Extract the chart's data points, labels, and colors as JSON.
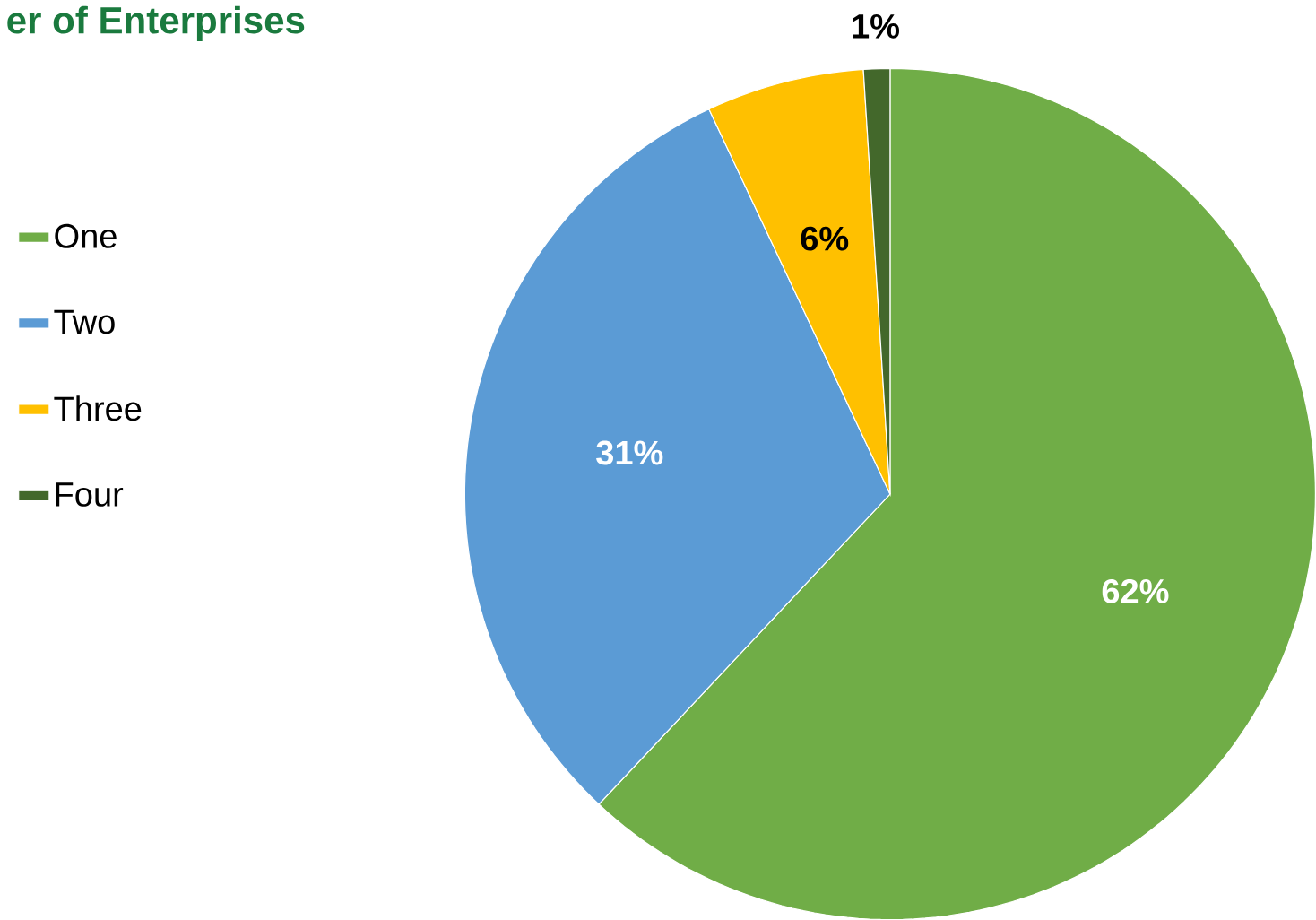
{
  "chart_data": {
    "type": "pie",
    "title": "er of Enterprises",
    "categories": [
      "One",
      "Two",
      "Three",
      "Four"
    ],
    "values": [
      62,
      31,
      6,
      1
    ],
    "value_labels": [
      "62%",
      "31%",
      "6%",
      "1%"
    ],
    "colors": [
      "#70ad47",
      "#5b9bd5",
      "#ffc000",
      "#43682b"
    ],
    "legend": "left"
  }
}
